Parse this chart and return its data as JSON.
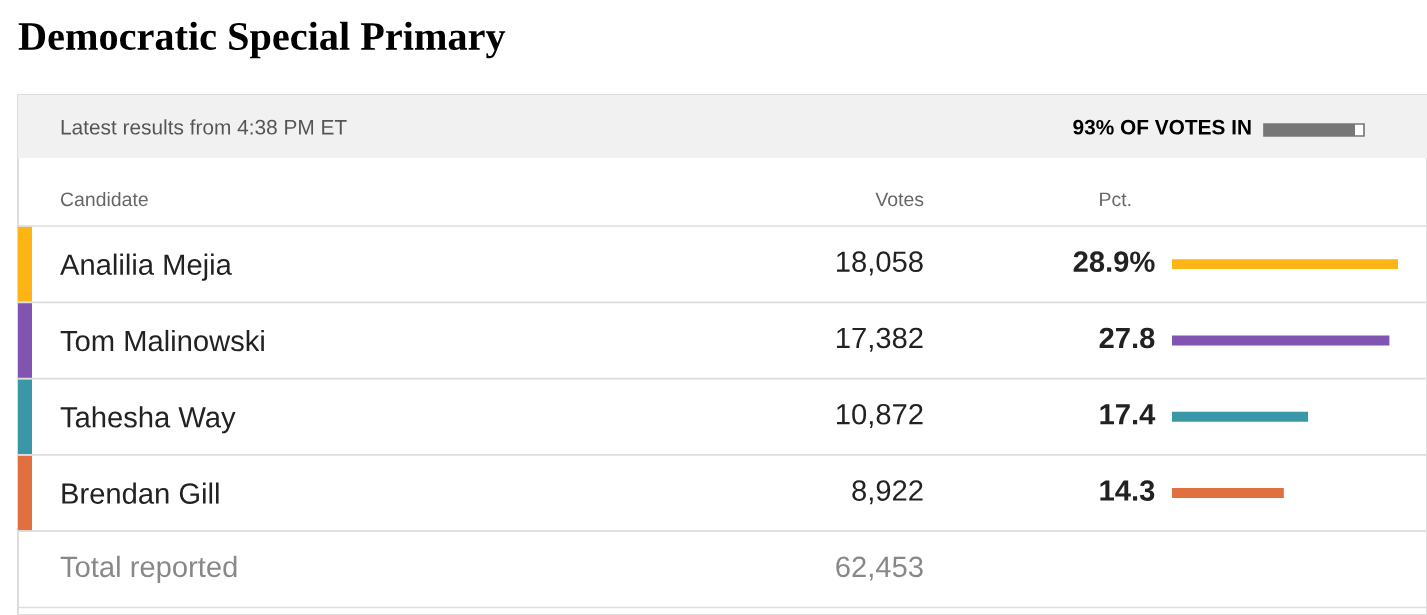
{
  "chart_data": {
    "type": "bar",
    "orientation": "horizontal",
    "title": "Democratic Special Primary",
    "subtitle": "Latest results from 4:38 PM ET",
    "categories": [
      "Analilia Mejia",
      "Tom Malinowski",
      "Tahesha Way",
      "Brendan Gill"
    ],
    "values": [
      28.9,
      27.8,
      17.4,
      14.3
    ],
    "colors": [
      "#fdb515",
      "#8254b1",
      "#3a97a6",
      "#e0703f"
    ],
    "value_labels": [
      "28.9%",
      "27.8",
      "17.4",
      "14.3"
    ],
    "xlim": [
      0,
      28.9
    ],
    "tick_labels": "y",
    "annotations": [
      "Candidate",
      "Votes",
      "Pct.",
      "18,058",
      "17,382",
      "10,872",
      "8,922",
      "Total reported",
      "62,453",
      "93% OF VOTES IN"
    ]
  }
}
